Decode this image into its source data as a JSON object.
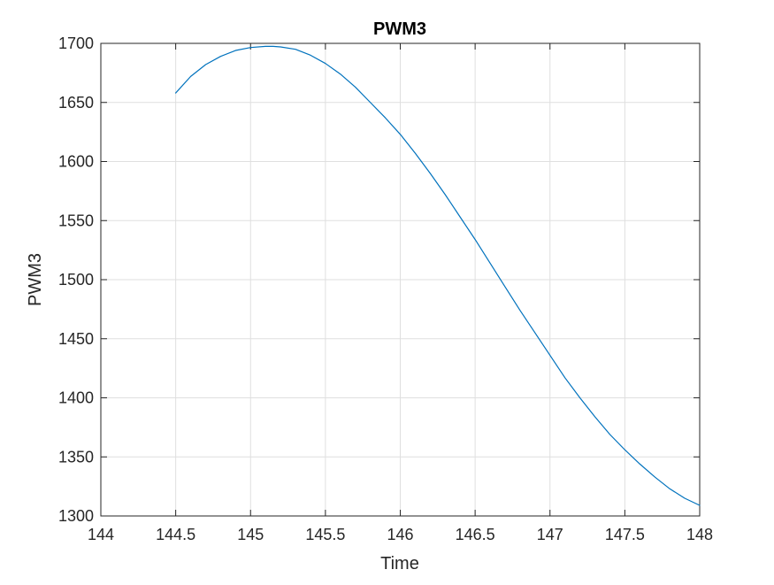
{
  "chart_data": {
    "type": "line",
    "title": "PWM3",
    "xlabel": "Time",
    "ylabel": "PWM3",
    "xlim": [
      144,
      148
    ],
    "ylim": [
      1300,
      1700
    ],
    "xticks": [
      144,
      144.5,
      145,
      145.5,
      146,
      146.5,
      147,
      147.5,
      148
    ],
    "yticks": [
      1300,
      1350,
      1400,
      1450,
      1500,
      1550,
      1600,
      1650,
      1700
    ],
    "xtick_labels": [
      "144",
      "144.5",
      "145",
      "145.5",
      "146",
      "146.5",
      "147",
      "147.5",
      "148"
    ],
    "ytick_labels": [
      "1300",
      "1350",
      "1400",
      "1450",
      "1500",
      "1550",
      "1600",
      "1650",
      "1700"
    ],
    "grid": true,
    "series": [
      {
        "color": "#0072BD",
        "x": [
          144.5,
          144.6,
          144.7,
          144.8,
          144.9,
          145.0,
          145.1,
          145.15,
          145.2,
          145.3,
          145.4,
          145.5,
          145.6,
          145.7,
          145.8,
          145.9,
          146.0,
          146.1,
          146.2,
          146.3,
          146.4,
          146.5,
          146.6,
          146.7,
          146.8,
          146.9,
          147.0,
          147.1,
          147.2,
          147.3,
          147.4,
          147.5,
          147.6,
          147.7,
          147.8,
          147.9,
          148.0
        ],
        "y": [
          1658,
          1672,
          1682,
          1689,
          1694,
          1696.5,
          1697.5,
          1697.5,
          1697,
          1695,
          1690,
          1683,
          1674,
          1663,
          1650,
          1637,
          1623,
          1607,
          1590,
          1572,
          1553,
          1534,
          1514,
          1494,
          1474,
          1455,
          1436,
          1417,
          1400,
          1384,
          1369,
          1356,
          1344,
          1333,
          1323,
          1315,
          1309
        ]
      }
    ]
  }
}
